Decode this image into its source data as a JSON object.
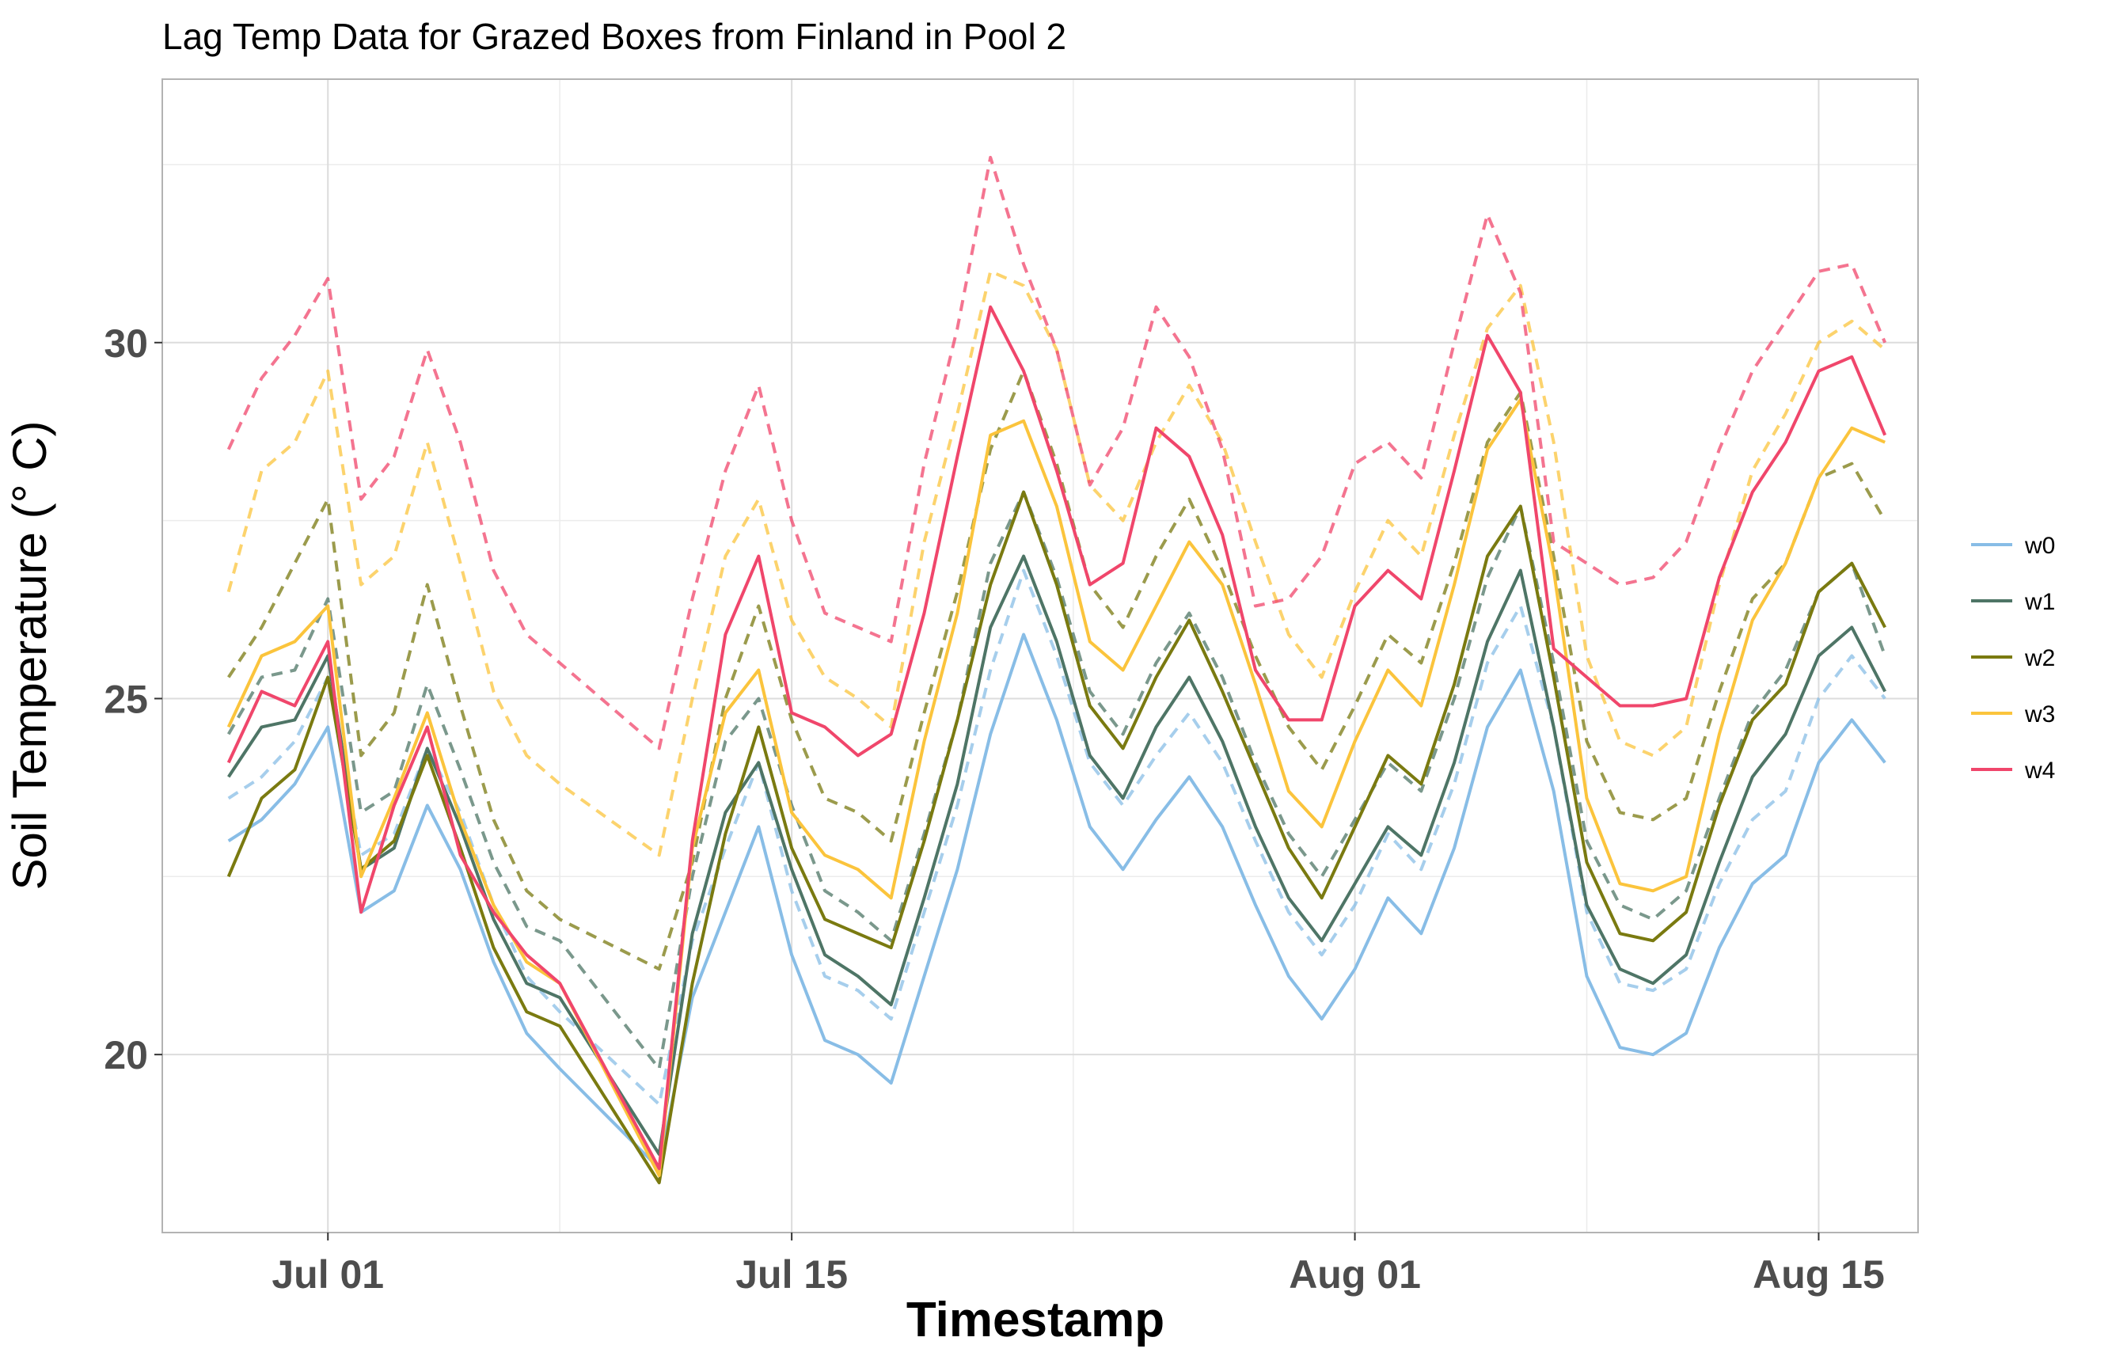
{
  "chart_data": {
    "type": "line",
    "title": "Lag Temp Data for Grazed Boxes from Finland in Pool 2",
    "xlabel": "Timestamp",
    "ylabel": "Soil Temperature (° C)",
    "x_ticks": [
      "Jul 01",
      "Jul 15",
      "Aug 01",
      "Aug 15"
    ],
    "x_tick_dates": [
      "2021-07-01",
      "2021-07-15",
      "2021-08-01",
      "2021-08-15"
    ],
    "xlim": [
      "2021-06-26",
      "2021-08-18"
    ],
    "ylim": [
      17.5,
      33.7
    ],
    "y_ticks": [
      20,
      25,
      30
    ],
    "grid": true,
    "legend_position": "right",
    "line_styles": {
      "solid": "mean",
      "dashed": "upper"
    },
    "x_dates": [
      "2021-06-28",
      "2021-06-29",
      "2021-06-30",
      "2021-07-01",
      "2021-07-02",
      "2021-07-03",
      "2021-07-04",
      "2021-07-05",
      "2021-07-06",
      "2021-07-07",
      "2021-07-08",
      "2021-07-11",
      "2021-07-12",
      "2021-07-13",
      "2021-07-14",
      "2021-07-15",
      "2021-07-16",
      "2021-07-17",
      "2021-07-18",
      "2021-07-19",
      "2021-07-20",
      "2021-07-21",
      "2021-07-22",
      "2021-07-23",
      "2021-07-24",
      "2021-07-25",
      "2021-07-26",
      "2021-07-27",
      "2021-07-28",
      "2021-07-29",
      "2021-07-30",
      "2021-07-31",
      "2021-08-01",
      "2021-08-02",
      "2021-08-03",
      "2021-08-04",
      "2021-08-05",
      "2021-08-06",
      "2021-08-07",
      "2021-08-08",
      "2021-08-09",
      "2021-08-10",
      "2021-08-11",
      "2021-08-12",
      "2021-08-13",
      "2021-08-14",
      "2021-08-15",
      "2021-08-16",
      "2021-08-17"
    ],
    "series": [
      {
        "name": "w0",
        "color": "#88bde6",
        "mean": [
          23.0,
          23.3,
          23.8,
          24.6,
          22.0,
          22.3,
          23.5,
          22.6,
          21.3,
          20.3,
          19.8,
          18.4,
          20.8,
          22.0,
          23.2,
          21.4,
          20.2,
          20.0,
          19.6,
          21.1,
          22.6,
          24.5,
          25.9,
          24.7,
          23.2,
          22.6,
          23.3,
          23.9,
          23.2,
          22.1,
          21.1,
          20.5,
          21.2,
          22.2,
          21.7,
          22.9,
          24.6,
          25.4,
          23.7,
          21.1,
          20.1,
          20.0,
          20.3,
          21.5,
          22.4,
          22.8,
          24.1,
          24.7,
          24.1
        ],
        "upper": [
          23.6,
          23.9,
          24.4,
          25.3,
          22.8,
          23.1,
          24.3,
          23.4,
          22.1,
          21.1,
          20.6,
          19.3,
          21.6,
          22.9,
          24.1,
          22.3,
          21.1,
          20.9,
          20.5,
          22.0,
          23.5,
          25.4,
          26.8,
          25.6,
          24.1,
          23.5,
          24.2,
          24.8,
          24.1,
          23.0,
          22.0,
          21.4,
          22.1,
          23.1,
          22.6,
          23.8,
          25.5,
          26.3,
          24.6,
          22.0,
          21.0,
          20.9,
          21.2,
          22.4,
          23.3,
          23.7,
          25.0,
          25.6,
          25.0
        ]
      },
      {
        "name": "w1",
        "color": "#4e7566",
        "mean": [
          23.9,
          24.6,
          24.7,
          25.6,
          22.6,
          22.9,
          24.3,
          23.2,
          21.9,
          21.0,
          20.8,
          18.6,
          21.7,
          23.4,
          24.1,
          22.6,
          21.4,
          21.1,
          20.7,
          22.2,
          23.8,
          26.0,
          27.0,
          25.8,
          24.2,
          23.6,
          24.6,
          25.3,
          24.4,
          23.2,
          22.2,
          21.6,
          22.4,
          23.2,
          22.8,
          24.1,
          25.8,
          26.8,
          24.6,
          22.1,
          21.2,
          21.0,
          21.4,
          22.7,
          23.9,
          24.5,
          25.6,
          26.0,
          25.1
        ],
        "upper": [
          24.5,
          25.3,
          25.4,
          26.4,
          23.4,
          23.7,
          25.2,
          24.0,
          22.7,
          21.8,
          21.6,
          19.8,
          22.5,
          24.4,
          25.0,
          23.5,
          22.3,
          22.0,
          21.6,
          23.1,
          24.7,
          26.9,
          27.9,
          26.7,
          25.1,
          24.5,
          25.5,
          26.2,
          25.3,
          24.1,
          23.1,
          22.5,
          23.3,
          24.1,
          23.7,
          25.0,
          26.7,
          27.7,
          25.5,
          23.0,
          22.1,
          21.9,
          22.3,
          23.6,
          24.8,
          25.4,
          26.5,
          26.9,
          25.6
        ]
      },
      {
        "name": "w2",
        "color": "#7a7a10",
        "mean": [
          22.5,
          23.6,
          24.0,
          25.3,
          22.6,
          23.0,
          24.2,
          22.9,
          21.5,
          20.6,
          20.4,
          18.2,
          21.0,
          23.1,
          24.6,
          22.9,
          21.9,
          21.7,
          21.5,
          23.0,
          24.7,
          26.6,
          27.9,
          26.6,
          24.9,
          24.3,
          25.3,
          26.1,
          25.1,
          24.0,
          22.9,
          22.2,
          23.2,
          24.2,
          23.8,
          25.2,
          27.0,
          27.7,
          25.3,
          22.7,
          21.7,
          21.6,
          22.0,
          23.5,
          24.7,
          25.2,
          26.5,
          26.9,
          26.0
        ],
        "upper": [
          25.3,
          26.0,
          26.9,
          27.8,
          24.2,
          24.8,
          26.6,
          24.9,
          23.3,
          22.3,
          21.9,
          21.2,
          22.7,
          25.0,
          26.3,
          24.7,
          23.6,
          23.4,
          23.0,
          24.8,
          26.5,
          28.5,
          29.6,
          28.3,
          26.6,
          26.0,
          27.0,
          27.8,
          26.8,
          25.6,
          24.6,
          24.0,
          24.9,
          25.9,
          25.5,
          26.9,
          28.6,
          29.3,
          27.0,
          24.4,
          23.4,
          23.3,
          23.6,
          25.1,
          26.4,
          26.9,
          28.1,
          28.3,
          27.5
        ]
      },
      {
        "name": "w3",
        "color": "#fbc43c",
        "mean": [
          24.6,
          25.6,
          25.8,
          26.3,
          22.5,
          23.6,
          24.8,
          23.3,
          22.1,
          21.3,
          21.0,
          18.3,
          22.9,
          24.8,
          25.4,
          23.4,
          22.8,
          22.6,
          22.2,
          24.4,
          26.2,
          28.7,
          28.9,
          27.7,
          25.8,
          25.4,
          26.3,
          27.2,
          26.6,
          25.2,
          23.7,
          23.2,
          24.4,
          25.4,
          24.9,
          26.6,
          28.5,
          29.2,
          26.8,
          23.6,
          22.4,
          22.3,
          22.5,
          24.5,
          26.1,
          26.9,
          28.1,
          28.8,
          28.6
        ],
        "upper": [
          26.5,
          28.2,
          28.6,
          29.6,
          26.6,
          27.0,
          28.6,
          26.9,
          25.1,
          24.2,
          23.8,
          22.8,
          25.0,
          27.0,
          27.8,
          26.1,
          25.3,
          25.0,
          24.6,
          27.2,
          29.0,
          31.0,
          30.8,
          29.9,
          28.0,
          27.5,
          28.6,
          29.4,
          28.6,
          27.2,
          25.9,
          25.3,
          26.5,
          27.5,
          27.0,
          28.7,
          30.2,
          30.8,
          28.6,
          25.6,
          24.4,
          24.2,
          24.6,
          26.6,
          28.2,
          29.0,
          30.0,
          30.3,
          29.9
        ]
      },
      {
        "name": "w4",
        "color": "#f0466b",
        "mean": [
          24.1,
          25.1,
          24.9,
          25.8,
          22.0,
          23.5,
          24.6,
          22.8,
          22.0,
          21.4,
          21.0,
          18.4,
          23.0,
          25.9,
          27.0,
          24.8,
          24.6,
          24.2,
          24.5,
          26.2,
          28.4,
          30.5,
          29.6,
          28.2,
          26.6,
          26.9,
          28.8,
          28.4,
          27.3,
          25.4,
          24.7,
          24.7,
          26.3,
          26.8,
          26.4,
          28.2,
          30.1,
          29.3,
          25.7,
          25.3,
          24.9,
          24.9,
          25.0,
          26.7,
          27.9,
          28.6,
          29.6,
          29.8,
          28.7
        ],
        "upper": [
          28.5,
          29.5,
          30.1,
          30.9,
          27.8,
          28.4,
          29.9,
          28.6,
          26.8,
          25.9,
          25.5,
          24.3,
          26.4,
          28.2,
          29.4,
          27.5,
          26.2,
          26.0,
          25.8,
          28.3,
          30.2,
          32.6,
          31.1,
          29.9,
          28.0,
          28.8,
          30.5,
          29.8,
          28.5,
          26.3,
          26.4,
          27.0,
          28.3,
          28.6,
          28.1,
          30.0,
          31.8,
          30.7,
          27.2,
          26.9,
          26.6,
          26.7,
          27.2,
          28.5,
          29.6,
          30.3,
          31.0,
          31.1,
          30.0
        ]
      }
    ]
  }
}
